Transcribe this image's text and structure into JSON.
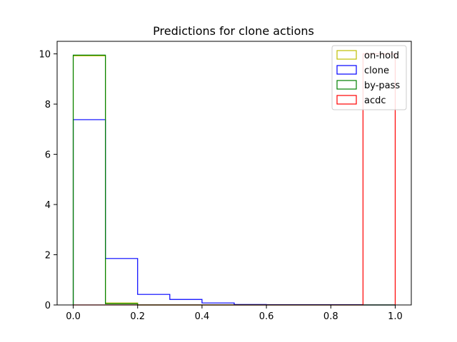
{
  "chart_data": {
    "type": "histogram-step",
    "title": "Predictions for clone actions",
    "xlabel": "",
    "ylabel": "",
    "xlim": [
      -0.05,
      1.05
    ],
    "ylim": [
      0,
      10.5
    ],
    "xticks": [
      0.0,
      0.2,
      0.4,
      0.6,
      0.8,
      1.0
    ],
    "xtick_labels": [
      "0.0",
      "0.2",
      "0.4",
      "0.6",
      "0.8",
      "1.0"
    ],
    "yticks": [
      0,
      2,
      4,
      6,
      8,
      10
    ],
    "ytick_labels": [
      "0",
      "2",
      "4",
      "6",
      "8",
      "10"
    ],
    "bin_edges": [
      0.0,
      0.1,
      0.2,
      0.3,
      0.4,
      0.5,
      0.6,
      0.7,
      0.8,
      0.9,
      1.0
    ],
    "legend_position": "top-right",
    "grid": false,
    "series": [
      {
        "name": "on-hold",
        "color": "#bfbf00",
        "values": [
          9.92,
          0.08,
          0,
          0,
          0,
          0,
          0,
          0,
          0,
          0
        ]
      },
      {
        "name": "clone",
        "color": "#0000ff",
        "values": [
          7.38,
          1.85,
          0.42,
          0.22,
          0.08,
          0.02,
          0.01,
          0.01,
          0.01,
          0.0
        ]
      },
      {
        "name": "by-pass",
        "color": "#008000",
        "values": [
          9.95,
          0.05,
          0,
          0,
          0,
          0,
          0,
          0,
          0,
          0
        ]
      },
      {
        "name": "acdc",
        "color": "#ff0000",
        "values": [
          0,
          0,
          0,
          0,
          0,
          0,
          0,
          0,
          0,
          10.0
        ]
      }
    ]
  }
}
